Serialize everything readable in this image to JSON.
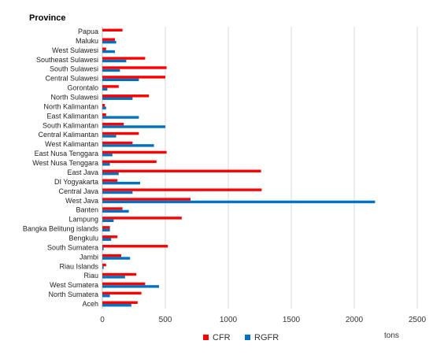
{
  "chart_data": {
    "type": "bar",
    "orientation": "horizontal",
    "ylabel": "Province",
    "xlabel": "tons",
    "xlim": [
      0,
      2500
    ],
    "xticks": [
      0,
      500,
      1000,
      1500,
      2000,
      2500
    ],
    "grid": true,
    "legend_position": "bottom",
    "categories": [
      "Papua",
      "Maluku",
      "West Sulawesi",
      "Southeast Sulawesi",
      "South Sulawesi",
      "Central Sulawesi",
      "Gorontalo",
      "North Sulawesi",
      "North Kalimantan",
      "East Kalimantan",
      "South Kalimantan",
      "Central Kalimantan",
      "West Kalimantan",
      "East Nusa Tenggara",
      "West Nusa Tenggara",
      "East Java",
      "DI Yogyakarta",
      "Central Java",
      "West Java",
      "Banten",
      "Lampung",
      "Bangka Belitung islands",
      "Bengkulu",
      "South Sumatera",
      "Jambi",
      "Riau Islands",
      "Riau",
      "West Sumatera",
      "North Sumatera",
      "Aceh"
    ],
    "series": [
      {
        "name": "CFR",
        "color": "#ff0000",
        "values": [
          160,
          100,
          30,
          340,
          510,
          500,
          130,
          370,
          20,
          30,
          170,
          290,
          240,
          510,
          430,
          1260,
          120,
          1265,
          700,
          160,
          630,
          60,
          120,
          520,
          150,
          30,
          270,
          340,
          310,
          280
        ]
      },
      {
        "name": "RGFR",
        "color": "#0070c0",
        "values": [
          0,
          110,
          100,
          190,
          140,
          290,
          40,
          240,
          30,
          290,
          500,
          110,
          410,
          80,
          60,
          130,
          300,
          240,
          2165,
          210,
          90,
          60,
          70,
          10,
          220,
          10,
          180,
          450,
          60,
          230
        ]
      }
    ]
  }
}
